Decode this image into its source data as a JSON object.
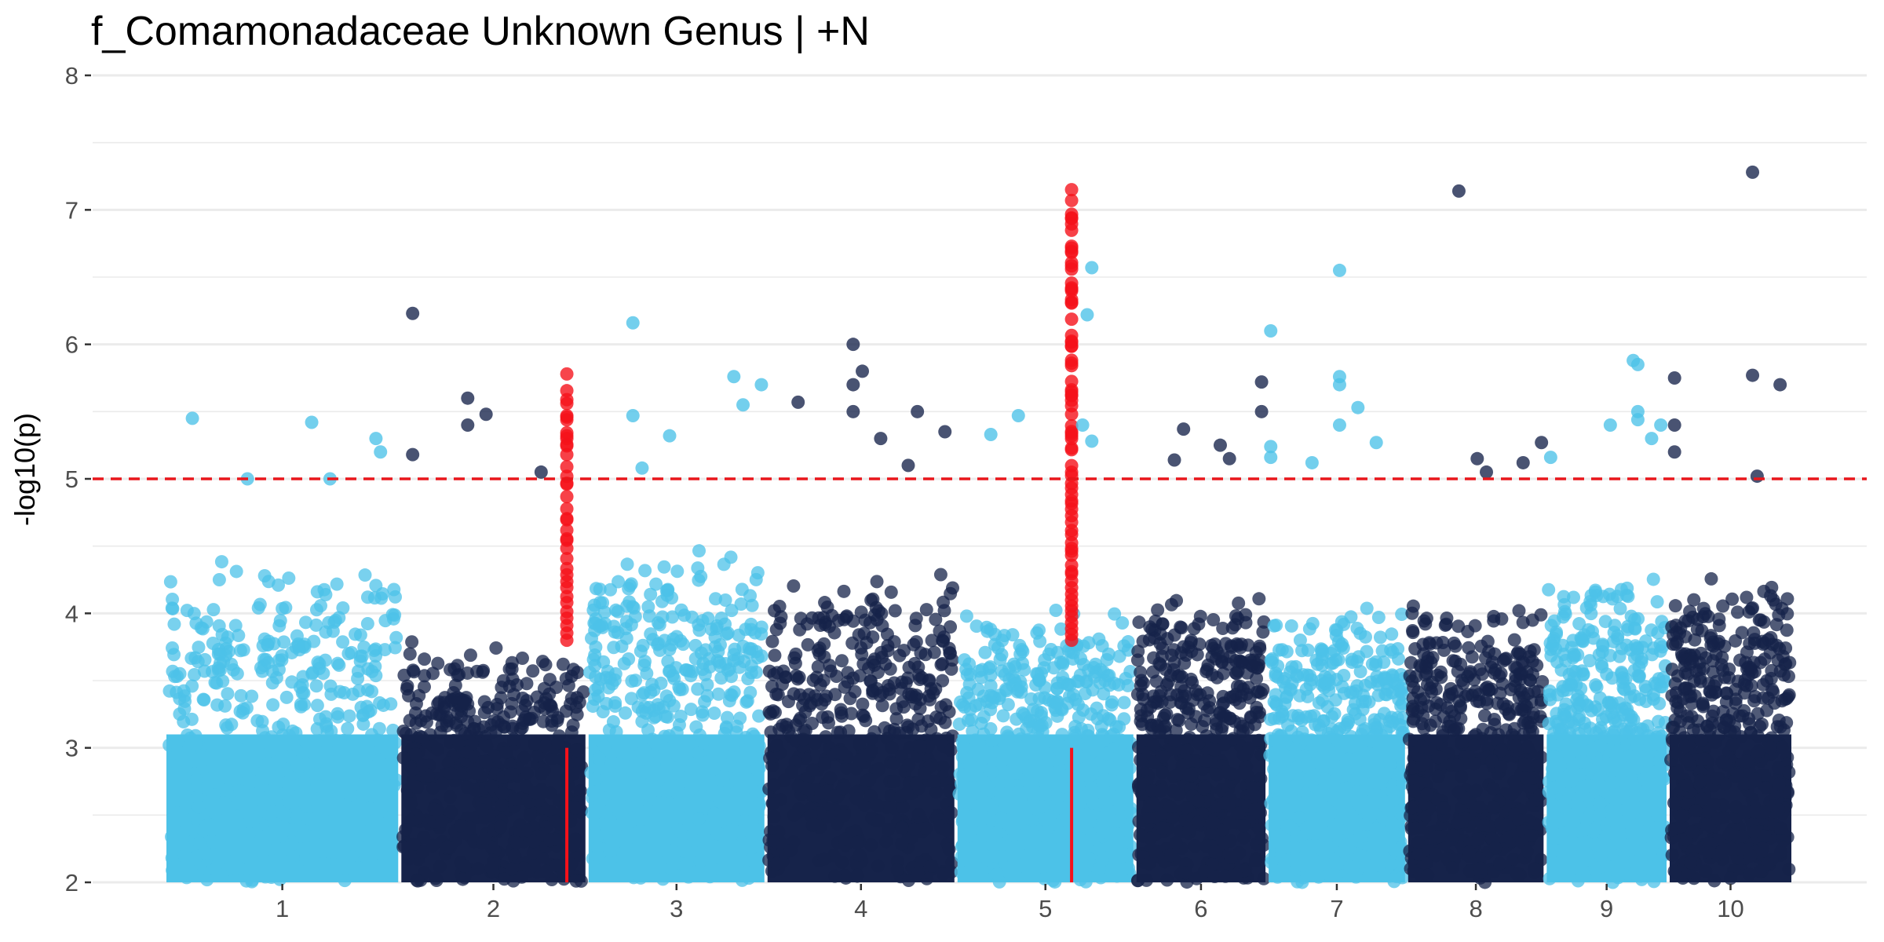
{
  "chart_data": {
    "type": "scatter",
    "title": "f_Comamonadaceae Unknown Genus | +N",
    "xlabel": "",
    "ylabel": "-log10(p)",
    "ylim": [
      2,
      8
    ],
    "y_ticks": [
      2,
      3,
      4,
      5,
      6,
      7,
      8
    ],
    "grid": true,
    "threshold": {
      "value": 5,
      "color": "#e8161b",
      "style": "dashed"
    },
    "colors": {
      "light": "#4cc2e8",
      "dark": "#16234a",
      "highlight": "#f5111a"
    },
    "chromosomes": [
      {
        "label": "1",
        "start": 0.0,
        "end": 2.56,
        "color": "light",
        "ceiling": 4.4
      },
      {
        "label": "2",
        "start": 2.56,
        "end": 4.6,
        "color": "dark",
        "ceiling": 3.8
      },
      {
        "label": "3",
        "start": 4.6,
        "end": 6.55,
        "color": "light",
        "ceiling": 4.5
      },
      {
        "label": "4",
        "start": 6.55,
        "end": 8.62,
        "color": "dark",
        "ceiling": 4.3
      },
      {
        "label": "5",
        "start": 8.62,
        "end": 10.57,
        "color": "light",
        "ceiling": 4.1
      },
      {
        "label": "6",
        "start": 10.57,
        "end": 12.01,
        "color": "dark",
        "ceiling": 4.2
      },
      {
        "label": "7",
        "start": 12.01,
        "end": 13.53,
        "color": "light",
        "ceiling": 4.1
      },
      {
        "label": "8",
        "start": 13.53,
        "end": 15.04,
        "color": "dark",
        "ceiling": 4.1
      },
      {
        "label": "9",
        "start": 15.04,
        "end": 16.38,
        "color": "light",
        "ceiling": 4.3
      },
      {
        "label": "10",
        "start": 16.38,
        "end": 17.74,
        "color": "dark",
        "ceiling": 4.3
      }
    ],
    "highlight_regions": [
      {
        "chromosome": "2",
        "x": 4.38,
        "top": 5.8,
        "count": 34
      },
      {
        "chromosome": "5",
        "x": 9.88,
        "top": 7.15,
        "count": 72
      }
    ],
    "points": [
      {
        "x": 0.3,
        "y": 5.45,
        "color": "light"
      },
      {
        "x": 1.6,
        "y": 5.42,
        "color": "light"
      },
      {
        "x": 2.3,
        "y": 5.3,
        "color": "light"
      },
      {
        "x": 2.35,
        "y": 5.2,
        "color": "light"
      },
      {
        "x": 0.9,
        "y": 5.0,
        "color": "light"
      },
      {
        "x": 1.8,
        "y": 5.0,
        "color": "light"
      },
      {
        "x": 2.7,
        "y": 6.23,
        "color": "dark"
      },
      {
        "x": 3.3,
        "y": 5.6,
        "color": "dark"
      },
      {
        "x": 3.5,
        "y": 5.48,
        "color": "dark"
      },
      {
        "x": 3.3,
        "y": 5.4,
        "color": "dark"
      },
      {
        "x": 2.7,
        "y": 5.18,
        "color": "dark"
      },
      {
        "x": 4.1,
        "y": 5.05,
        "color": "dark"
      },
      {
        "x": 4.38,
        "y": 5.78,
        "color": "highlight"
      },
      {
        "x": 4.38,
        "y": 5.47,
        "color": "highlight"
      },
      {
        "x": 4.38,
        "y": 5.3,
        "color": "highlight"
      },
      {
        "x": 5.1,
        "y": 6.16,
        "color": "light"
      },
      {
        "x": 5.1,
        "y": 5.47,
        "color": "light"
      },
      {
        "x": 5.5,
        "y": 5.32,
        "color": "light"
      },
      {
        "x": 6.2,
        "y": 5.76,
        "color": "light"
      },
      {
        "x": 6.5,
        "y": 5.7,
        "color": "light"
      },
      {
        "x": 6.3,
        "y": 5.55,
        "color": "light"
      },
      {
        "x": 5.2,
        "y": 5.08,
        "color": "light"
      },
      {
        "x": 6.9,
        "y": 5.57,
        "color": "dark"
      },
      {
        "x": 7.5,
        "y": 6.0,
        "color": "dark"
      },
      {
        "x": 7.6,
        "y": 5.8,
        "color": "dark"
      },
      {
        "x": 7.5,
        "y": 5.7,
        "color": "dark"
      },
      {
        "x": 7.5,
        "y": 5.5,
        "color": "dark"
      },
      {
        "x": 8.2,
        "y": 5.5,
        "color": "dark"
      },
      {
        "x": 7.8,
        "y": 5.3,
        "color": "dark"
      },
      {
        "x": 8.5,
        "y": 5.35,
        "color": "dark"
      },
      {
        "x": 8.1,
        "y": 5.1,
        "color": "dark"
      },
      {
        "x": 9.3,
        "y": 5.47,
        "color": "light"
      },
      {
        "x": 9.0,
        "y": 5.33,
        "color": "light"
      },
      {
        "x": 10.1,
        "y": 6.57,
        "color": "light"
      },
      {
        "x": 10.05,
        "y": 6.22,
        "color": "light"
      },
      {
        "x": 10.0,
        "y": 5.4,
        "color": "light"
      },
      {
        "x": 10.1,
        "y": 5.28,
        "color": "light"
      },
      {
        "x": 9.88,
        "y": 7.15,
        "color": "highlight"
      },
      {
        "x": 9.88,
        "y": 7.07,
        "color": "highlight"
      },
      {
        "x": 9.88,
        "y": 6.94,
        "color": "highlight"
      },
      {
        "x": 9.88,
        "y": 6.73,
        "color": "highlight"
      },
      {
        "x": 11.1,
        "y": 5.37,
        "color": "dark"
      },
      {
        "x": 11.0,
        "y": 5.14,
        "color": "dark"
      },
      {
        "x": 11.5,
        "y": 5.25,
        "color": "dark"
      },
      {
        "x": 11.6,
        "y": 5.15,
        "color": "dark"
      },
      {
        "x": 11.95,
        "y": 5.72,
        "color": "dark"
      },
      {
        "x": 11.95,
        "y": 5.5,
        "color": "dark"
      },
      {
        "x": 12.05,
        "y": 6.1,
        "color": "light"
      },
      {
        "x": 12.05,
        "y": 5.24,
        "color": "light"
      },
      {
        "x": 12.05,
        "y": 5.16,
        "color": "light"
      },
      {
        "x": 12.8,
        "y": 6.55,
        "color": "light"
      },
      {
        "x": 12.8,
        "y": 5.76,
        "color": "light"
      },
      {
        "x": 12.8,
        "y": 5.7,
        "color": "light"
      },
      {
        "x": 13.0,
        "y": 5.53,
        "color": "light"
      },
      {
        "x": 12.8,
        "y": 5.4,
        "color": "light"
      },
      {
        "x": 13.2,
        "y": 5.27,
        "color": "light"
      },
      {
        "x": 12.5,
        "y": 5.12,
        "color": "light"
      },
      {
        "x": 14.1,
        "y": 7.14,
        "color": "dark"
      },
      {
        "x": 14.3,
        "y": 5.15,
        "color": "dark"
      },
      {
        "x": 14.8,
        "y": 5.12,
        "color": "dark"
      },
      {
        "x": 15.0,
        "y": 5.27,
        "color": "dark"
      },
      {
        "x": 14.4,
        "y": 5.05,
        "color": "dark"
      },
      {
        "x": 15.1,
        "y": 5.16,
        "color": "light"
      },
      {
        "x": 15.75,
        "y": 5.4,
        "color": "light"
      },
      {
        "x": 16.0,
        "y": 5.88,
        "color": "light"
      },
      {
        "x": 16.05,
        "y": 5.85,
        "color": "light"
      },
      {
        "x": 16.05,
        "y": 5.5,
        "color": "light"
      },
      {
        "x": 16.05,
        "y": 5.44,
        "color": "light"
      },
      {
        "x": 16.3,
        "y": 5.4,
        "color": "light"
      },
      {
        "x": 16.2,
        "y": 5.3,
        "color": "light"
      },
      {
        "x": 16.45,
        "y": 5.75,
        "color": "dark"
      },
      {
        "x": 16.45,
        "y": 5.4,
        "color": "dark"
      },
      {
        "x": 16.45,
        "y": 5.2,
        "color": "dark"
      },
      {
        "x": 17.3,
        "y": 7.28,
        "color": "dark"
      },
      {
        "x": 17.3,
        "y": 5.77,
        "color": "dark"
      },
      {
        "x": 17.6,
        "y": 5.7,
        "color": "dark"
      },
      {
        "x": 17.35,
        "y": 5.02,
        "color": "dark"
      }
    ]
  }
}
